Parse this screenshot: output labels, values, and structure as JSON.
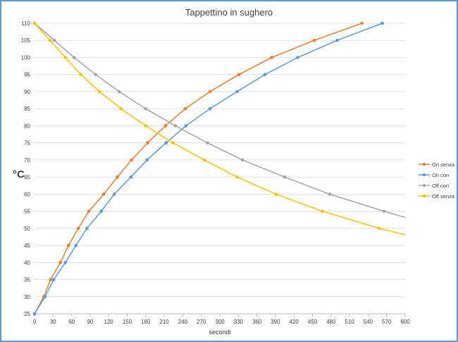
{
  "chart_data": {
    "type": "line",
    "title": "Tappettino in sughero",
    "xlabel": "secondi",
    "ylabel": "°C",
    "xlim": [
      0,
      600
    ],
    "ylim": [
      25,
      110
    ],
    "xticks": [
      0,
      30,
      60,
      90,
      120,
      150,
      180,
      210,
      240,
      270,
      300,
      330,
      360,
      390,
      420,
      450,
      480,
      510,
      540,
      570,
      600
    ],
    "yticks": [
      25,
      30,
      35,
      40,
      45,
      50,
      55,
      60,
      65,
      70,
      75,
      80,
      85,
      90,
      95,
      100,
      105,
      110
    ],
    "grid": "horizontal",
    "legend_position": "right",
    "series": [
      {
        "name": "On senza",
        "color": "#ed7d31",
        "points": [
          [
            0,
            25
          ],
          [
            15,
            30
          ],
          [
            26,
            35
          ],
          [
            42,
            40
          ],
          [
            55,
            45
          ],
          [
            71,
            50
          ],
          [
            88,
            55
          ],
          [
            112,
            60
          ],
          [
            134,
            65
          ],
          [
            157,
            70
          ],
          [
            183,
            75
          ],
          [
            212,
            80
          ],
          [
            244,
            85
          ],
          [
            284,
            90
          ],
          [
            331,
            95
          ],
          [
            384,
            100
          ],
          [
            453,
            105
          ],
          [
            530,
            110
          ]
        ]
      },
      {
        "name": "On con",
        "color": "#5b9bd5",
        "points": [
          [
            0,
            25
          ],
          [
            17,
            30
          ],
          [
            31,
            35
          ],
          [
            50,
            40
          ],
          [
            67,
            45
          ],
          [
            85,
            50
          ],
          [
            108,
            55
          ],
          [
            129,
            60
          ],
          [
            156,
            65
          ],
          [
            182,
            70
          ],
          [
            213,
            75
          ],
          [
            245,
            80
          ],
          [
            284,
            85
          ],
          [
            328,
            90
          ],
          [
            373,
            95
          ],
          [
            426,
            100
          ],
          [
            490,
            105
          ],
          [
            563,
            110
          ]
        ]
      },
      {
        "name": "Off con",
        "color": "#a5a5a5",
        "points": [
          [
            0,
            110
          ],
          [
            32,
            105
          ],
          [
            64,
            100
          ],
          [
            99,
            95
          ],
          [
            137,
            90
          ],
          [
            180,
            85
          ],
          [
            228,
            80
          ],
          [
            280,
            75
          ],
          [
            337,
            70
          ],
          [
            405,
            65
          ],
          [
            478,
            60
          ],
          [
            566,
            55
          ],
          [
            600,
            53.2
          ]
        ]
      },
      {
        "name": "Off senza",
        "color": "#ffc000",
        "points": [
          [
            0,
            110
          ],
          [
            25,
            105
          ],
          [
            50,
            100
          ],
          [
            75,
            95
          ],
          [
            105,
            90
          ],
          [
            140,
            85
          ],
          [
            180,
            80
          ],
          [
            224,
            75
          ],
          [
            275,
            70
          ],
          [
            328,
            65
          ],
          [
            391,
            60
          ],
          [
            466,
            55
          ],
          [
            558,
            50
          ],
          [
            600,
            48.1
          ]
        ]
      }
    ]
  }
}
